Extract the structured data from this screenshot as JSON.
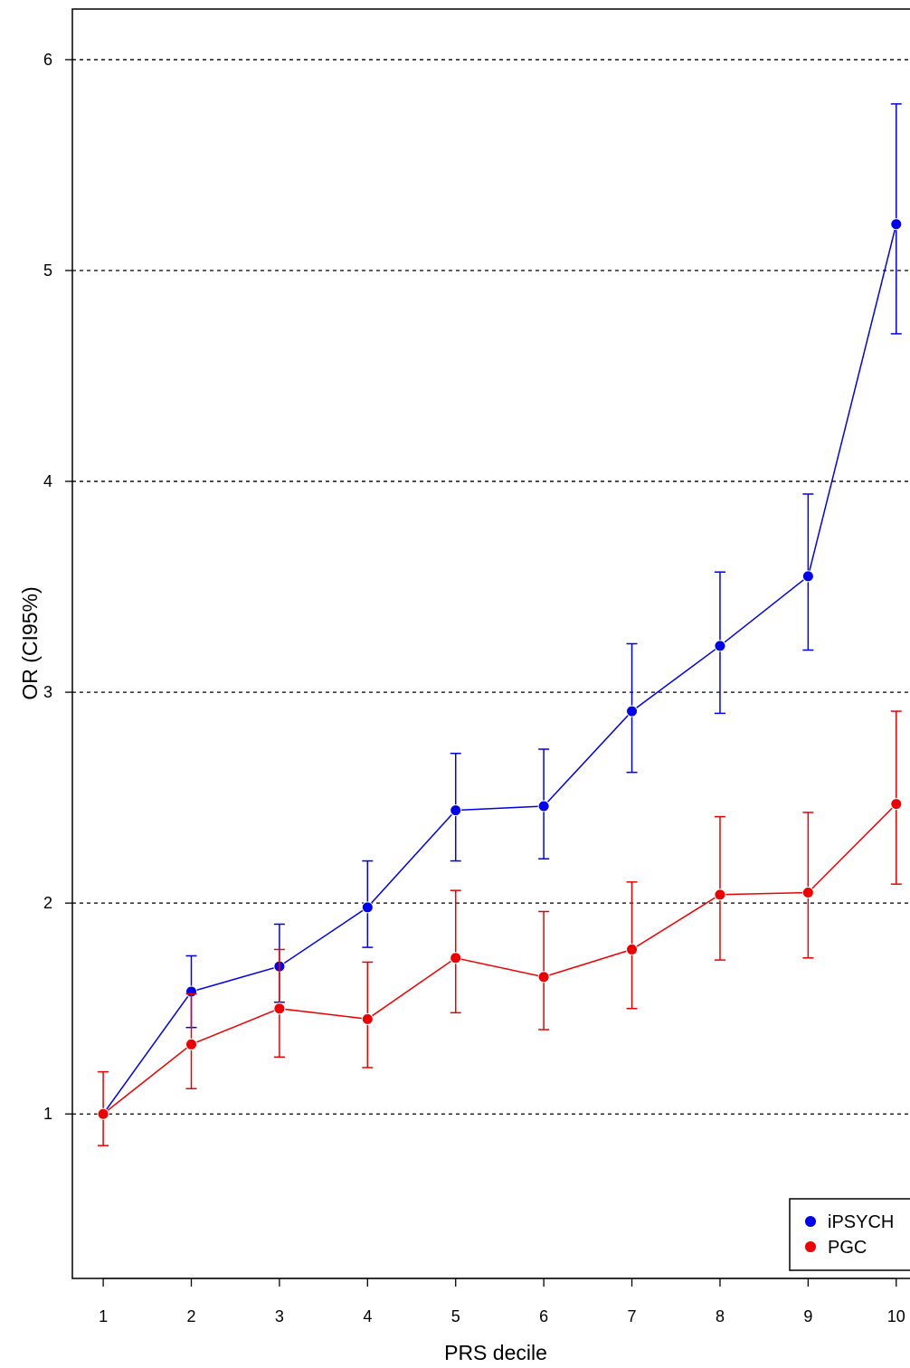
{
  "chart_data": {
    "type": "line",
    "xlabel": "PRS decile",
    "ylabel": "OR (CI95%)",
    "x": [
      1,
      2,
      3,
      4,
      5,
      6,
      7,
      8,
      9,
      10
    ],
    "xlim": [
      0.65,
      10.3
    ],
    "ylim": [
      0.22,
      6.24
    ],
    "yticks": [
      1,
      2,
      3,
      4,
      5,
      6
    ],
    "grid": "horizontal dashed at y ticks",
    "legend_position": "bottom-right",
    "series": [
      {
        "name": "iPSYCH",
        "color": "#0000ee",
        "values": [
          1.0,
          1.58,
          1.7,
          1.98,
          2.44,
          2.46,
          2.91,
          3.22,
          3.55,
          5.22
        ],
        "ci_lower": [
          1.0,
          1.41,
          1.53,
          1.79,
          2.2,
          2.21,
          2.62,
          2.9,
          3.2,
          4.7
        ],
        "ci_upper": [
          1.0,
          1.75,
          1.9,
          2.2,
          2.71,
          2.73,
          3.23,
          3.57,
          3.94,
          5.79
        ]
      },
      {
        "name": "PGC",
        "color": "#ee0000",
        "values": [
          1.0,
          1.33,
          1.5,
          1.45,
          1.74,
          1.65,
          1.78,
          2.04,
          2.05,
          2.47
        ],
        "ci_lower": [
          0.85,
          1.12,
          1.27,
          1.22,
          1.48,
          1.4,
          1.5,
          1.73,
          1.74,
          2.09
        ],
        "ci_upper": [
          1.2,
          1.57,
          1.78,
          1.72,
          2.06,
          1.96,
          2.1,
          2.41,
          2.43,
          2.91
        ]
      }
    ]
  }
}
